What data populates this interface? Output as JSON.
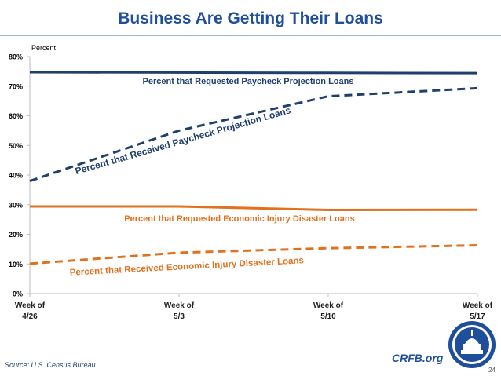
{
  "slide": {
    "title": "Business Are Getting Their Loans",
    "source": "Source: U.S. Census Bureau.",
    "site": "CRFB.org",
    "page_number": "24"
  },
  "colors": {
    "title": "#1f4e9a",
    "navy_series": "#1f3f6e",
    "orange_series": "#e2711d",
    "seal_ring": "#1f4e9a"
  },
  "chart_data": {
    "type": "line",
    "ylabel": "Percent",
    "xlabel": "",
    "categories": [
      "Week of 4/26",
      "Week of 5/3",
      "Week of 5/10",
      "Week of 5/17"
    ],
    "x_tick_lines": [
      [
        "Week of",
        "4/26"
      ],
      [
        "Week of",
        "5/3"
      ],
      [
        "Week of",
        "5/10"
      ],
      [
        "Week of",
        "5/17"
      ]
    ],
    "ylim": [
      0,
      80
    ],
    "yticks": [
      "0%",
      "10%",
      "20%",
      "30%",
      "40%",
      "50%",
      "60%",
      "70%",
      "80%"
    ],
    "ytick_values": [
      0,
      10,
      20,
      30,
      40,
      50,
      60,
      70,
      80
    ],
    "grid": false,
    "legend": "none",
    "series": [
      {
        "name": "Percent that Requested Paycheck Projection Loans",
        "values": [
          74.7,
          74.6,
          74.5,
          74.4
        ],
        "style": "solid",
        "color": "#1f3f6e"
      },
      {
        "name": "Percent that Received Paycheck Projection Loans",
        "values": [
          38,
          55,
          66.6,
          69.3
        ],
        "style": "dashed",
        "color": "#1f3f6e"
      },
      {
        "name": "Percent that Requested Economic Injury Disaster Loans",
        "values": [
          29.4,
          29.4,
          28.2,
          28.3
        ],
        "style": "solid",
        "color": "#e2711d"
      },
      {
        "name": "Percent that Received Economic Injury Disaster Loans",
        "values": [
          10.1,
          13.8,
          15.3,
          16.3
        ],
        "style": "dashed",
        "color": "#e2711d"
      }
    ]
  }
}
